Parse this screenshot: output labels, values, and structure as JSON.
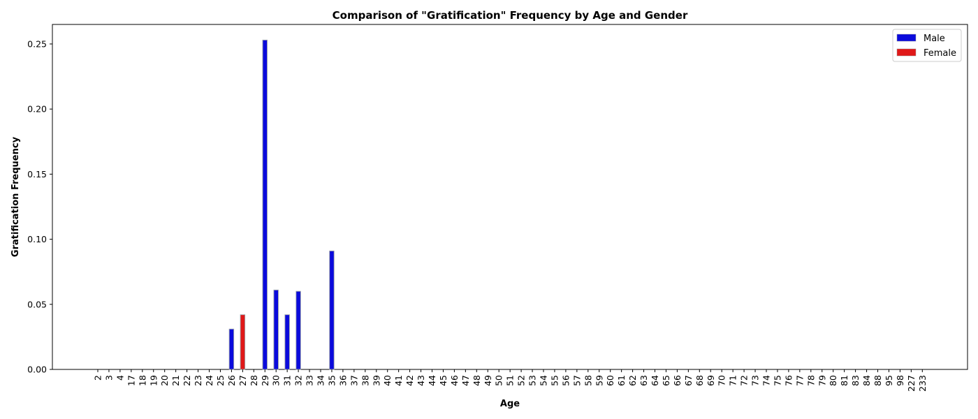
{
  "chart_data": {
    "type": "bar",
    "title": "Comparison of \"Gratification\" Frequency by Age and Gender",
    "xlabel": "Age",
    "ylabel": "Gratification Frequency",
    "ylim": [
      0,
      0.265
    ],
    "yticks": [
      "0.00",
      "0.05",
      "0.10",
      "0.15",
      "0.20",
      "0.25"
    ],
    "legend_position": "top-right",
    "grid": false,
    "categories": [
      "2",
      "3",
      "4",
      "17",
      "18",
      "19",
      "20",
      "21",
      "22",
      "23",
      "24",
      "25",
      "26",
      "27",
      "28",
      "29",
      "30",
      "31",
      "32",
      "33",
      "34",
      "35",
      "36",
      "37",
      "38",
      "39",
      "40",
      "41",
      "42",
      "43",
      "44",
      "45",
      "46",
      "47",
      "48",
      "49",
      "50",
      "51",
      "52",
      "53",
      "54",
      "55",
      "56",
      "57",
      "58",
      "59",
      "60",
      "61",
      "62",
      "63",
      "64",
      "65",
      "66",
      "67",
      "68",
      "69",
      "70",
      "71",
      "72",
      "73",
      "74",
      "75",
      "76",
      "77",
      "78",
      "79",
      "80",
      "81",
      "83",
      "84",
      "88",
      "95",
      "98",
      "227",
      "233"
    ],
    "series": [
      {
        "name": "Male",
        "color": "#0a0adc",
        "values": [
          0,
          0,
          0,
          0,
          0,
          0,
          0,
          0,
          0,
          0,
          0,
          0,
          0.031,
          0,
          0,
          0.253,
          0.061,
          0.042,
          0.06,
          0,
          0,
          0.091,
          0,
          0,
          0,
          0,
          0,
          0,
          0,
          0,
          0,
          0,
          0,
          0,
          0,
          0,
          0,
          0,
          0,
          0,
          0,
          0,
          0,
          0,
          0,
          0,
          0,
          0,
          0,
          0,
          0,
          0,
          0,
          0,
          0,
          0,
          0,
          0,
          0,
          0,
          0,
          0,
          0,
          0,
          0,
          0,
          0,
          0,
          0,
          0,
          0,
          0,
          0,
          0,
          0
        ]
      },
      {
        "name": "Female",
        "color": "#e01818",
        "values": [
          0,
          0,
          0,
          0,
          0,
          0,
          0,
          0,
          0,
          0,
          0,
          0,
          0,
          0.042,
          0,
          0,
          0,
          0,
          0,
          0,
          0,
          0,
          0,
          0,
          0,
          0,
          0,
          0,
          0,
          0,
          0,
          0,
          0,
          0,
          0,
          0,
          0,
          0,
          0,
          0,
          0,
          0,
          0,
          0,
          0,
          0,
          0,
          0,
          0,
          0,
          0,
          0,
          0,
          0,
          0,
          0,
          0,
          0,
          0,
          0,
          0,
          0,
          0,
          0,
          0,
          0,
          0,
          0,
          0,
          0,
          0,
          0,
          0,
          0,
          0
        ]
      }
    ]
  }
}
